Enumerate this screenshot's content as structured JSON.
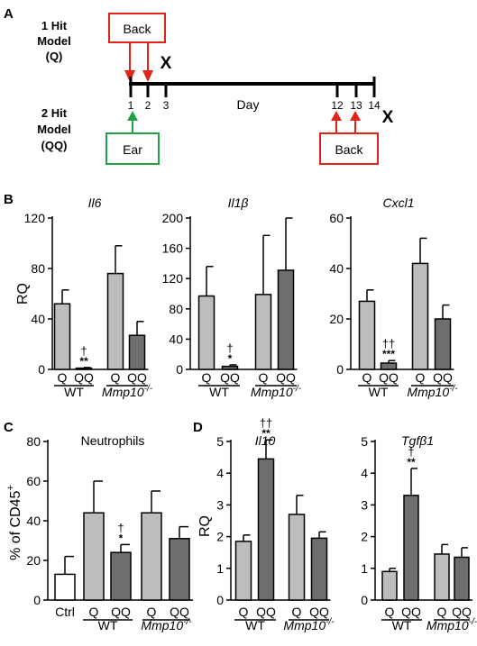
{
  "figure": {
    "panel_labels": {
      "A": "A",
      "B": "B",
      "C": "C",
      "D": "D"
    }
  },
  "panelA": {
    "model1": {
      "line1": "1 Hit",
      "line2": "Model",
      "line3": "(Q)"
    },
    "model2": {
      "line1": "2 Hit",
      "line2": "Model",
      "line3": "(QQ)"
    },
    "back_label": "Back",
    "ear_label": "Ear",
    "back2_label": "Back",
    "day_label": "Day",
    "ticks": [
      "1",
      "2",
      "3",
      "12",
      "13",
      "14"
    ],
    "end_marker": "X",
    "colors": {
      "back": "#e2231a",
      "ear": "#1fa345"
    }
  },
  "chart_data": [
    {
      "type": "bar",
      "panel": "B",
      "title": "Il6",
      "ylabel": "RQ",
      "ylim": [
        0,
        120
      ],
      "yticks": [
        "0",
        "40",
        "80",
        "120"
      ],
      "categories": [
        "Q",
        "QQ",
        "Q",
        "QQ"
      ],
      "groups": [
        "WT",
        "Mmp10"
      ],
      "group_superscript": "-/-",
      "values": [
        52,
        1,
        76,
        27
      ],
      "errors": [
        11,
        0.5,
        22,
        11
      ],
      "colors": [
        "#bdbdbd",
        "#6e6e6e",
        "#bdbdbd",
        "#6e6e6e"
      ],
      "annotations": [
        {
          "index": 1,
          "sym": "†",
          "stars": "**"
        }
      ]
    },
    {
      "type": "bar",
      "panel": "B",
      "title": "Il1β",
      "ylabel": "",
      "ylim": [
        0,
        200
      ],
      "yticks": [
        "0",
        "40",
        "80",
        "120",
        "160",
        "200"
      ],
      "categories": [
        "Q",
        "QQ",
        "Q",
        "QQ"
      ],
      "groups": [
        "WT",
        "Mmp10"
      ],
      "group_superscript": "-/-",
      "values": [
        97,
        4,
        99,
        131
      ],
      "errors": [
        39,
        2,
        78,
        69
      ],
      "colors": [
        "#bdbdbd",
        "#6e6e6e",
        "#bdbdbd",
        "#6e6e6e"
      ],
      "annotations": [
        {
          "index": 1,
          "sym": "†",
          "stars": "*"
        }
      ]
    },
    {
      "type": "bar",
      "panel": "B",
      "title": "Cxcl1",
      "ylabel": "",
      "ylim": [
        0,
        60
      ],
      "yticks": [
        "0",
        "20",
        "40",
        "60"
      ],
      "categories": [
        "Q",
        "QQ",
        "Q",
        "QQ"
      ],
      "groups": [
        "WT",
        "Mmp10"
      ],
      "group_superscript": "-/-",
      "values": [
        27,
        2.5,
        42,
        20
      ],
      "errors": [
        4.5,
        1,
        10,
        5.5
      ],
      "colors": [
        "#bdbdbd",
        "#6e6e6e",
        "#bdbdbd",
        "#6e6e6e"
      ],
      "annotations": [
        {
          "index": 1,
          "sym": "††",
          "stars": "***"
        }
      ]
    },
    {
      "type": "bar",
      "panel": "C",
      "title": "Neutrophils",
      "ylabel": "% of CD45",
      "ylabel_superscript": "+",
      "ylim": [
        0,
        80
      ],
      "yticks": [
        "0",
        "20",
        "40",
        "60",
        "80"
      ],
      "categories": [
        "Ctrl",
        "Q",
        "QQ",
        "Q",
        "QQ"
      ],
      "groups": [
        "WT",
        "Mmp10"
      ],
      "group_superscript": "-/-",
      "values": [
        13,
        44,
        24,
        44,
        31
      ],
      "errors": [
        9,
        16,
        4,
        11,
        6
      ],
      "colors": [
        "#ffffff",
        "#bdbdbd",
        "#6e6e6e",
        "#bdbdbd",
        "#6e6e6e"
      ],
      "annotations": [
        {
          "index": 2,
          "sym": "†",
          "stars": "*"
        }
      ]
    },
    {
      "type": "bar",
      "panel": "D",
      "title": "Il10",
      "ylabel": "RQ",
      "ylim": [
        0,
        5
      ],
      "yticks": [
        "0",
        "1",
        "2",
        "3",
        "4",
        "5"
      ],
      "categories": [
        "Q",
        "QQ",
        "Q",
        "QQ"
      ],
      "groups": [
        "WT",
        "Mmp10"
      ],
      "group_superscript": "-/-",
      "values": [
        1.85,
        4.45,
        2.7,
        1.95
      ],
      "errors": [
        0.2,
        0.6,
        0.6,
        0.2
      ],
      "colors": [
        "#bdbdbd",
        "#6e6e6e",
        "#bdbdbd",
        "#6e6e6e"
      ],
      "annotations": [
        {
          "index": 1,
          "sym": "††",
          "stars": "**"
        }
      ]
    },
    {
      "type": "bar",
      "panel": "D",
      "title": "Tgfβ1",
      "ylabel": "",
      "ylim": [
        0,
        5
      ],
      "yticks": [
        "0",
        "1",
        "2",
        "3",
        "4",
        "5"
      ],
      "categories": [
        "Q",
        "QQ",
        "Q",
        "QQ"
      ],
      "groups": [
        "WT",
        "Mmp10"
      ],
      "group_superscript": "-/-",
      "values": [
        0.9,
        3.3,
        1.45,
        1.35
      ],
      "errors": [
        0.1,
        0.85,
        0.3,
        0.3
      ],
      "colors": [
        "#bdbdbd",
        "#6e6e6e",
        "#bdbdbd",
        "#6e6e6e"
      ],
      "annotations": [
        {
          "index": 1,
          "sym": "†",
          "stars": "**"
        }
      ]
    }
  ]
}
